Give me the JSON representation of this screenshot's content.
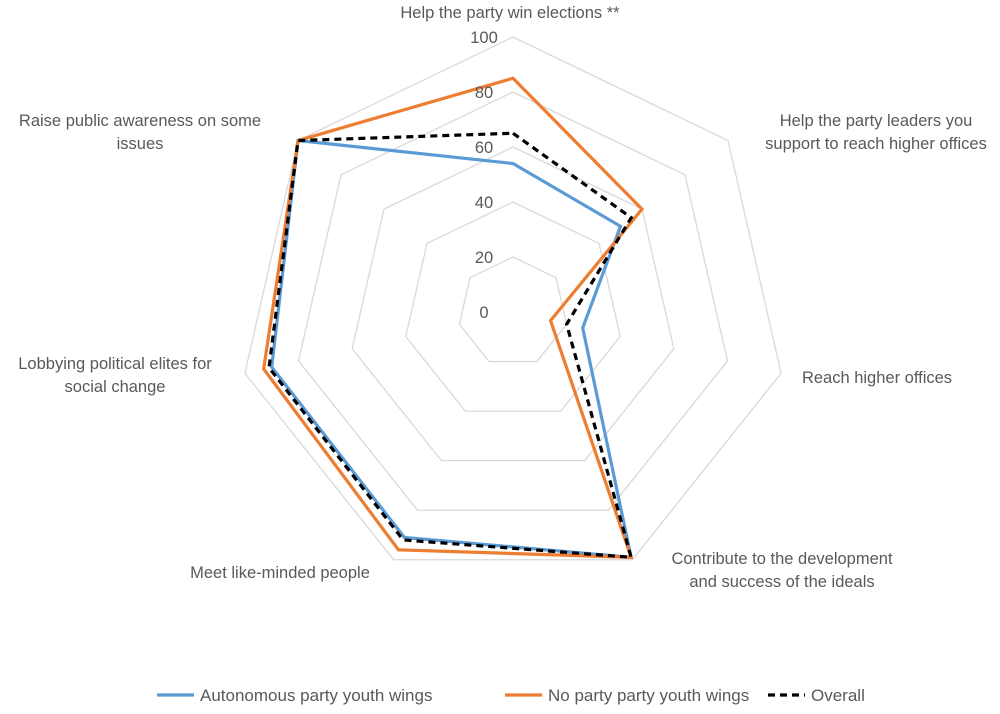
{
  "chart_data": {
    "type": "radar",
    "title": "",
    "categories": [
      [
        "Help the party win elections **"
      ],
      [
        "Help the party leaders you",
        "support to reach higher offices"
      ],
      [
        "Reach higher offices"
      ],
      [
        "Contribute to the development",
        "and success of the ideals"
      ],
      [
        "Meet like-minded people"
      ],
      [
        "Lobbying political elites for",
        "social change"
      ],
      [
        "Raise public awareness on some",
        "issues"
      ]
    ],
    "rlim": [
      0,
      100
    ],
    "ticks": [
      0,
      20,
      40,
      60,
      80,
      100
    ],
    "tick_labels": [
      "0",
      "20",
      "40",
      "60",
      "80",
      "100"
    ],
    "grid": true,
    "legend_position": "bottom",
    "series": [
      {
        "name": "Autonomous party youth wings",
        "color": "#5b9bd5",
        "dash": "solid",
        "values": [
          54,
          50,
          26,
          99,
          91,
          90,
          100
        ]
      },
      {
        "name": "No party party youth wings",
        "color": "#ed7d31",
        "dash": "solid",
        "values": [
          85,
          60,
          14,
          99,
          96,
          93,
          100
        ]
      },
      {
        "name": "Overall",
        "color": "#000000",
        "dash": "dashed",
        "values": [
          65,
          55,
          20,
          99,
          92,
          91,
          100
        ]
      }
    ]
  }
}
